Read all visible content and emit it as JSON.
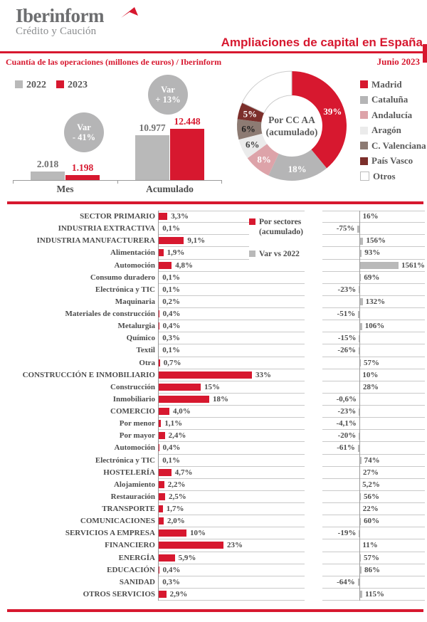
{
  "header": {
    "brand": "Iberinform",
    "brand_sub": "Crédito y Caución",
    "title": "Ampliaciones de capital en España",
    "date": "Junio 2023"
  },
  "colors": {
    "red": "#d7182f",
    "bar_gray": "#b9b9b9",
    "bubble_gray": "#b5b5b6",
    "text_dark": "#4c4c4c",
    "text_gray": "#595959",
    "logo_gray": "#6d6e70",
    "grid_gray": "#c9c9c9"
  },
  "chart_data": [
    {
      "type": "bar",
      "title": "Cuantía de las operaciones (millones de euros) / Iberinform",
      "categories": [
        "Mes",
        "Acumulado"
      ],
      "series": [
        {
          "name": "2022",
          "color": "#b9b9b9",
          "label_color": "#6f6f6f",
          "values": [
            2018,
            10977
          ],
          "labels": [
            "2.018",
            "10.977"
          ]
        },
        {
          "name": "2023",
          "color": "#d7182f",
          "label_color": "#d7182f",
          "values": [
            1198,
            12448
          ],
          "labels": [
            "1.198",
            "12.448"
          ]
        }
      ],
      "annotations": [
        {
          "category": "Mes",
          "line1": "Var",
          "line2": "- 41%"
        },
        {
          "category": "Acumulado",
          "line1": "Var",
          "line2": "+ 13%"
        }
      ],
      "ylim": [
        0,
        12448
      ],
      "grid": false,
      "legend_position": "top-left"
    },
    {
      "type": "pie",
      "title": "Por CC AA (acumulado)",
      "center_label_line1": "Por CC AA",
      "center_label_line2": "(acumulado)",
      "slices": [
        {
          "name": "Madrid",
          "value": 39,
          "label": "39%",
          "color": "#d7182f",
          "label_color": "#ffffff"
        },
        {
          "name": "Cataluña",
          "value": 18,
          "label": "18%",
          "color": "#b5b5b6",
          "label_color": "#ffffff"
        },
        {
          "name": "Andalucía",
          "value": 8,
          "label": "8%",
          "color": "#dda3a9",
          "label_color": "#ffffff"
        },
        {
          "name": "Aragón",
          "value": 6,
          "label": "6%",
          "color": "#ebebeb",
          "label_color": "#3f3f3f"
        },
        {
          "name": "C. Valenciana",
          "value": 6,
          "label": "6%",
          "color": "#8d7b73",
          "label_color": "#1f1f1f"
        },
        {
          "name": "País Vasco",
          "value": 5,
          "label": "5%",
          "color": "#7c2f2b",
          "label_color": "#ffffff"
        },
        {
          "name": "Otros",
          "value": 18,
          "label": "",
          "color": "#ffffff",
          "label_color": "",
          "stroke": "#cccccc"
        }
      ],
      "legend_position": "right"
    },
    {
      "type": "bar",
      "orientation": "horizontal",
      "legend": {
        "line1": "Por sectores",
        "line2": "(acumulado)",
        "var_label": "Var vs 2022"
      },
      "rows": [
        {
          "label": "SECTOR PRIMARIO",
          "pct_label": "3,3%",
          "pct": 3.3,
          "var_label": "16%",
          "var": 16
        },
        {
          "label": "INDUSTRIA EXTRACTIVA",
          "pct_label": "0,1%",
          "pct": 0.1,
          "var_label": "-75%",
          "var": -75
        },
        {
          "label": "INDUSTRIA MANUFACTURERA",
          "pct_label": "9,1%",
          "pct": 9.1,
          "var_label": "156%",
          "var": 156
        },
        {
          "label": "Alimentación",
          "pct_label": "1,9%",
          "pct": 1.9,
          "var_label": "93%",
          "var": 93
        },
        {
          "label": "Automoción",
          "pct_label": "4,8%",
          "pct": 4.8,
          "var_label": "1561%",
          "var": 1561
        },
        {
          "label": "Consumo duradero",
          "pct_label": "0,1%",
          "pct": 0.1,
          "var_label": "69%",
          "var": 69
        },
        {
          "label": "Electrónica y TIC",
          "pct_label": "0,1%",
          "pct": 0.1,
          "var_label": "-23%",
          "var": -23
        },
        {
          "label": "Maquinaria",
          "pct_label": "0,2%",
          "pct": 0.2,
          "var_label": "132%",
          "var": 132
        },
        {
          "label": "Materiales de construcción",
          "pct_label": "0,4%",
          "pct": 0.4,
          "var_label": "-51%",
          "var": -51
        },
        {
          "label": "Metalurgia",
          "pct_label": "0,4%",
          "pct": 0.4,
          "var_label": "106%",
          "var": 106
        },
        {
          "label": "Químico",
          "pct_label": "0,3%",
          "pct": 0.3,
          "var_label": "-15%",
          "var": -15
        },
        {
          "label": "Textil",
          "pct_label": "0,1%",
          "pct": 0.1,
          "var_label": "-26%",
          "var": -26
        },
        {
          "label": "Otra",
          "pct_label": "0,7%",
          "pct": 0.7,
          "var_label": "57%",
          "var": 57
        },
        {
          "label": "CONSTRUCCIÓN E INMOBILIARIO",
          "pct_label": "33%",
          "pct": 33,
          "var_label": "10%",
          "var": 10
        },
        {
          "label": "Construcción",
          "pct_label": "15%",
          "pct": 15,
          "var_label": "28%",
          "var": 28
        },
        {
          "label": "Inmobiliario",
          "pct_label": "18%",
          "pct": 18,
          "var_label": "-0,6%",
          "var": -0.6
        },
        {
          "label": "COMERCIO",
          "pct_label": "4,0%",
          "pct": 4.0,
          "var_label": "-23%",
          "var": -23
        },
        {
          "label": "Por menor",
          "pct_label": "1,1%",
          "pct": 1.1,
          "var_label": "-4,1%",
          "var": -4.1
        },
        {
          "label": "Por mayor",
          "pct_label": "2,4%",
          "pct": 2.4,
          "var_label": "-20%",
          "var": -20
        },
        {
          "label": "Automoción",
          "pct_label": "0,4%",
          "pct": 0.4,
          "var_label": "-61%",
          "var": -61
        },
        {
          "label": "Electrónica y TIC",
          "pct_label": "0,1%",
          "pct": 0.1,
          "var_label": "74%",
          "var": 74
        },
        {
          "label": "HOSTELERÍA",
          "pct_label": "4,7%",
          "pct": 4.7,
          "var_label": "27%",
          "var": 27
        },
        {
          "label": "Alojamiento",
          "pct_label": "2,2%",
          "pct": 2.2,
          "var_label": "5,2%",
          "var": 5.2
        },
        {
          "label": "Restauración",
          "pct_label": "2,5%",
          "pct": 2.5,
          "var_label": "56%",
          "var": 56
        },
        {
          "label": "TRANSPORTE",
          "pct_label": "1,7%",
          "pct": 1.7,
          "var_label": "22%",
          "var": 22
        },
        {
          "label": "COMUNICACIONES",
          "pct_label": "2,0%",
          "pct": 2.0,
          "var_label": "60%",
          "var": 60
        },
        {
          "label": "SERVICIOS A EMPRESA",
          "pct_label": "10%",
          "pct": 10,
          "var_label": "-19%",
          "var": -19
        },
        {
          "label": "FINANCIERO",
          "pct_label": "23%",
          "pct": 23,
          "var_label": "11%",
          "var": 11
        },
        {
          "label": "ENERGÍA",
          "pct_label": "5,9%",
          "pct": 5.9,
          "var_label": "57%",
          "var": 57
        },
        {
          "label": "EDUCACIÓN",
          "pct_label": "0,4%",
          "pct": 0.4,
          "var_label": "86%",
          "var": 86
        },
        {
          "label": "SANIDAD",
          "pct_label": "0,3%",
          "pct": 0.3,
          "var_label": "-64%",
          "var": -64
        },
        {
          "label": "OTROS SERVICIOS",
          "pct_label": "2,9%",
          "pct": 2.9,
          "var_label": "115%",
          "var": 115
        }
      ]
    }
  ]
}
